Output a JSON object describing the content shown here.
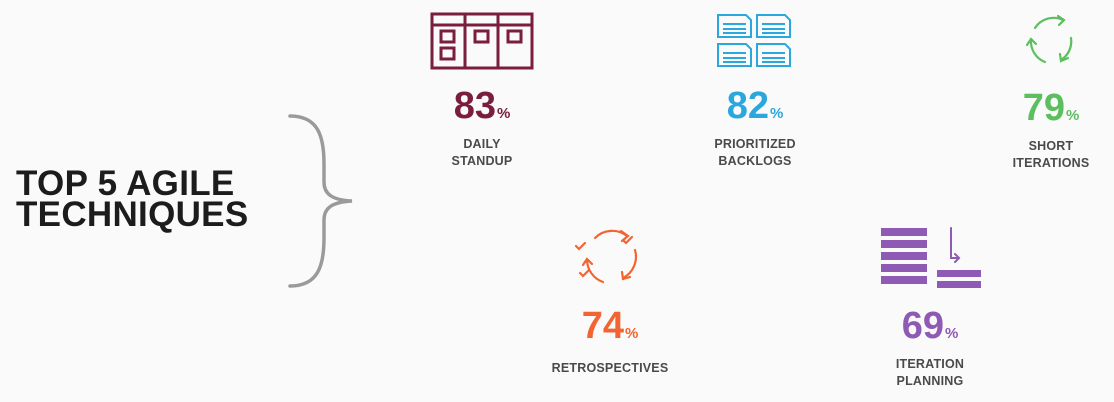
{
  "title": {
    "line1": "TOP 5 AGILE",
    "line2": "TECHNIQUES"
  },
  "chart_data": {
    "type": "table",
    "title": "TOP 5 AGILE TECHNIQUES",
    "unit": "%",
    "items": [
      {
        "label_lines": [
          "DAILY",
          "STANDUP"
        ],
        "value": 83,
        "color": "#7a1e3c",
        "icon": "kanban-board-icon"
      },
      {
        "label_lines": [
          "PRIORITIZED",
          "BACKLOGS"
        ],
        "value": 82,
        "color": "#2aa7dd",
        "icon": "stacked-cards-icon"
      },
      {
        "label_lines": [
          "SHORT",
          "ITERATIONS"
        ],
        "value": 79,
        "color": "#5cbf5e",
        "icon": "cycle-arrows-icon"
      },
      {
        "label_lines": [
          "RETROSPECTIVES"
        ],
        "value": 74,
        "color": "#f26531",
        "icon": "retrospective-cycle-icon"
      },
      {
        "label_lines": [
          "ITERATION",
          "PLANNING"
        ],
        "value": 69,
        "color": "#8e5ab3",
        "icon": "planning-stack-icon"
      }
    ]
  }
}
